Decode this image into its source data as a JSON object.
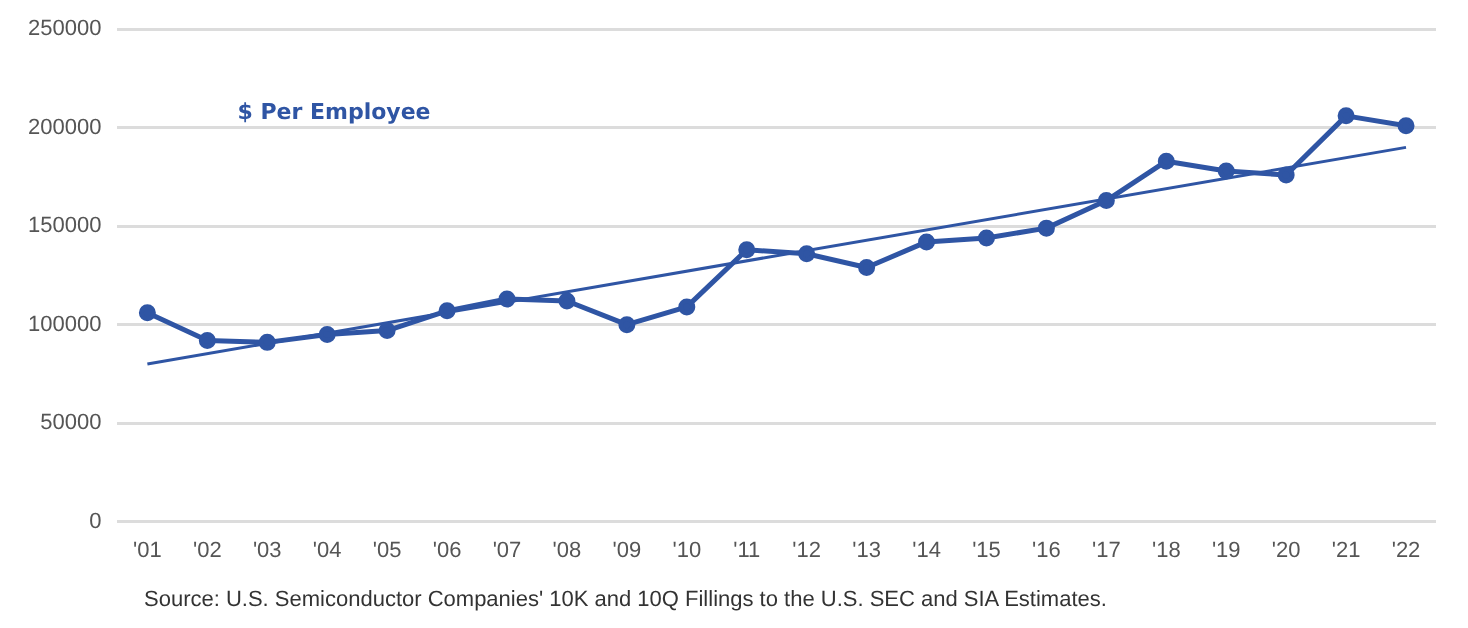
{
  "chart_data": {
    "type": "line",
    "categories": [
      "'01",
      "'02",
      "'03",
      "'04",
      "'05",
      "'06",
      "'07",
      "'08",
      "'09",
      "'10",
      "'11",
      "'12",
      "'13",
      "'14",
      "'15",
      "'16",
      "'17",
      "'18",
      "'19",
      "'20",
      "'21",
      "'22"
    ],
    "series": [
      {
        "name": "$ Per Employee",
        "color": "#2f55a4",
        "marker": "circle",
        "values": [
          106000,
          92000,
          91000,
          95000,
          97000,
          107000,
          113000,
          112000,
          100000,
          109000,
          138000,
          136000,
          129000,
          142000,
          144000,
          149000,
          163000,
          183000,
          178000,
          176000,
          206000,
          201000
        ]
      },
      {
        "color": "#2f55a4",
        "marker": "none",
        "x": [
          "'01",
          "'22"
        ],
        "values": [
          80000,
          190000
        ]
      }
    ],
    "ylim": [
      0,
      250000
    ],
    "yticks": [
      0,
      50000,
      100000,
      150000,
      200000,
      250000
    ],
    "grid": "y",
    "legend": false,
    "line_style": "solid",
    "annotations": [
      "Source: U.S. Semiconductor Companies' 10K and 10Q Fillings to the U.S. SEC and SIA Estimates."
    ]
  }
}
